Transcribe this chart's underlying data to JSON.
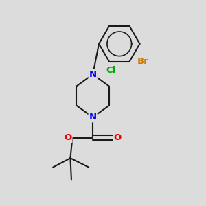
{
  "background_color": "#dcdcdc",
  "bond_color": "#1a1a1a",
  "bond_width": 1.5,
  "atom_colors": {
    "N": "#0000ee",
    "O": "#ee0000",
    "Cl": "#00aa00",
    "Br": "#cc7700",
    "C": "#1a1a1a"
  },
  "figsize": [
    3.0,
    3.0
  ],
  "dpi": 100,
  "xlim": [
    0,
    10
  ],
  "ylim": [
    0,
    10
  ]
}
